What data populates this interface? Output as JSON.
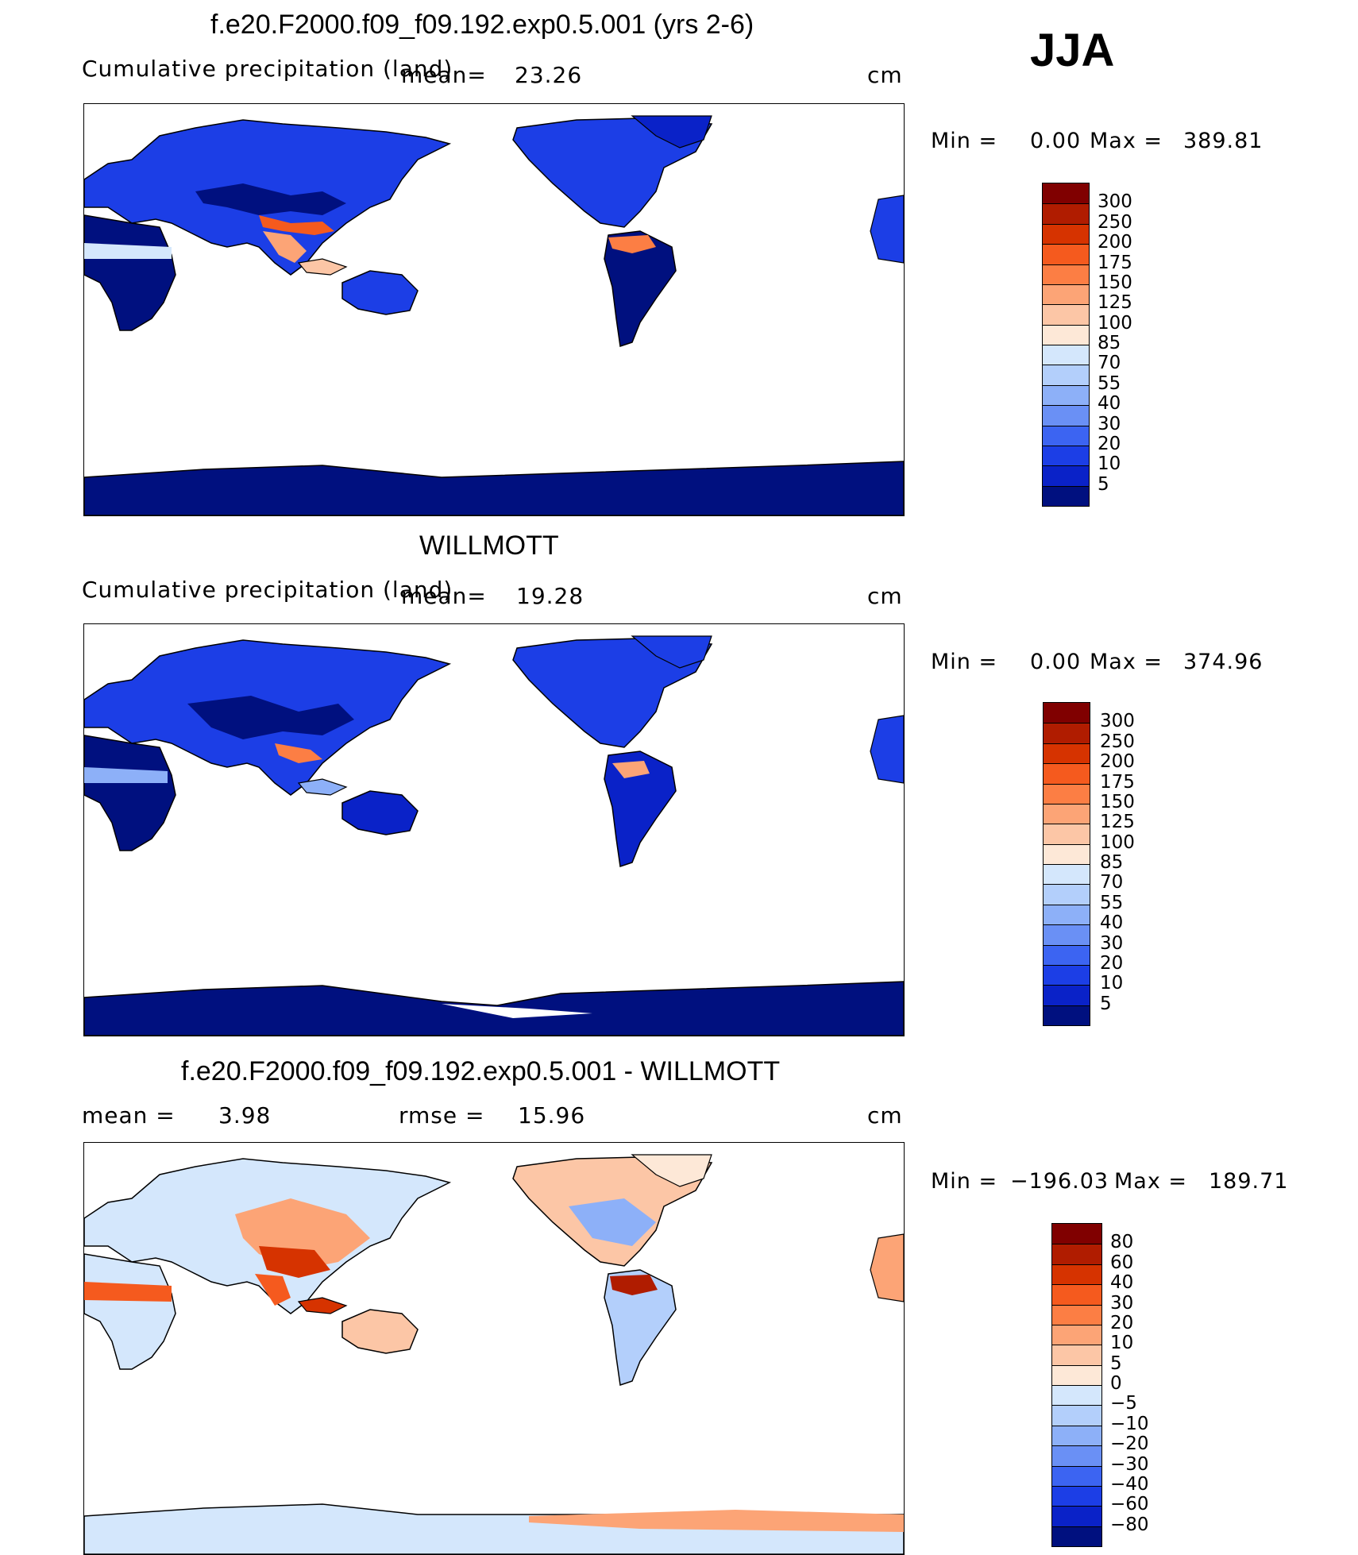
{
  "season": "JJA",
  "panels": [
    {
      "title": "f.e20.F2000.f09_f09.192.exp0.5.001 (yrs 2-6)",
      "variable": "Cumulative precipitation (land)",
      "mean_label": "mean=",
      "mean_value": "23.26",
      "units": "cm",
      "min_label": "Min =",
      "min_value": "0.00",
      "max_label": "Max =",
      "max_value": "389.81",
      "colorbar_labels": [
        "300",
        "250",
        "200",
        "175",
        "150",
        "125",
        "100",
        "85",
        "70",
        "55",
        "40",
        "30",
        "20",
        "10",
        "5"
      ]
    },
    {
      "title": "WILLMOTT",
      "variable": "Cumulative precipitation (land)",
      "mean_label": "mean=",
      "mean_value": "19.28",
      "units": "cm",
      "min_label": "Min =",
      "min_value": "0.00",
      "max_label": "Max =",
      "max_value": "374.96",
      "colorbar_labels": [
        "300",
        "250",
        "200",
        "175",
        "150",
        "125",
        "100",
        "85",
        "70",
        "55",
        "40",
        "30",
        "20",
        "10",
        "5"
      ]
    },
    {
      "title": "f.e20.F2000.f09_f09.192.exp0.5.001 - WILLMOTT",
      "mean_label": "mean =",
      "mean_value": "3.98",
      "rmse_label": "rmse =",
      "rmse_value": "15.96",
      "units": "cm",
      "min_label": "Min =",
      "min_value": "−196.03",
      "max_label": "Max =",
      "max_value": "189.71",
      "colorbar_labels": [
        "80",
        "60",
        "40",
        "30",
        "20",
        "10",
        "5",
        "0",
        "−5",
        "−10",
        "−20",
        "−30",
        "−40",
        "−60",
        "−80"
      ]
    }
  ],
  "colors": {
    "precip_scale": [
      "#800000",
      "#b01c00",
      "#d63300",
      "#f55a1e",
      "#fc7e44",
      "#fca476",
      "#fcc6a6",
      "#fde8d7",
      "#d4e7fc",
      "#b3cffb",
      "#8db0f8",
      "#6a90f5",
      "#3c64f2",
      "#1c3ee6",
      "#0a22c8",
      "#00107f"
    ],
    "diff_scale": [
      "#800000",
      "#b01c00",
      "#d63300",
      "#f55a1e",
      "#fc7e44",
      "#fca476",
      "#fcc6a6",
      "#fde8d7",
      "#d4e7fc",
      "#b3cffb",
      "#8db0f8",
      "#6a90f5",
      "#3c64f2",
      "#1c3ee6",
      "#0a22c8",
      "#00107f"
    ]
  }
}
